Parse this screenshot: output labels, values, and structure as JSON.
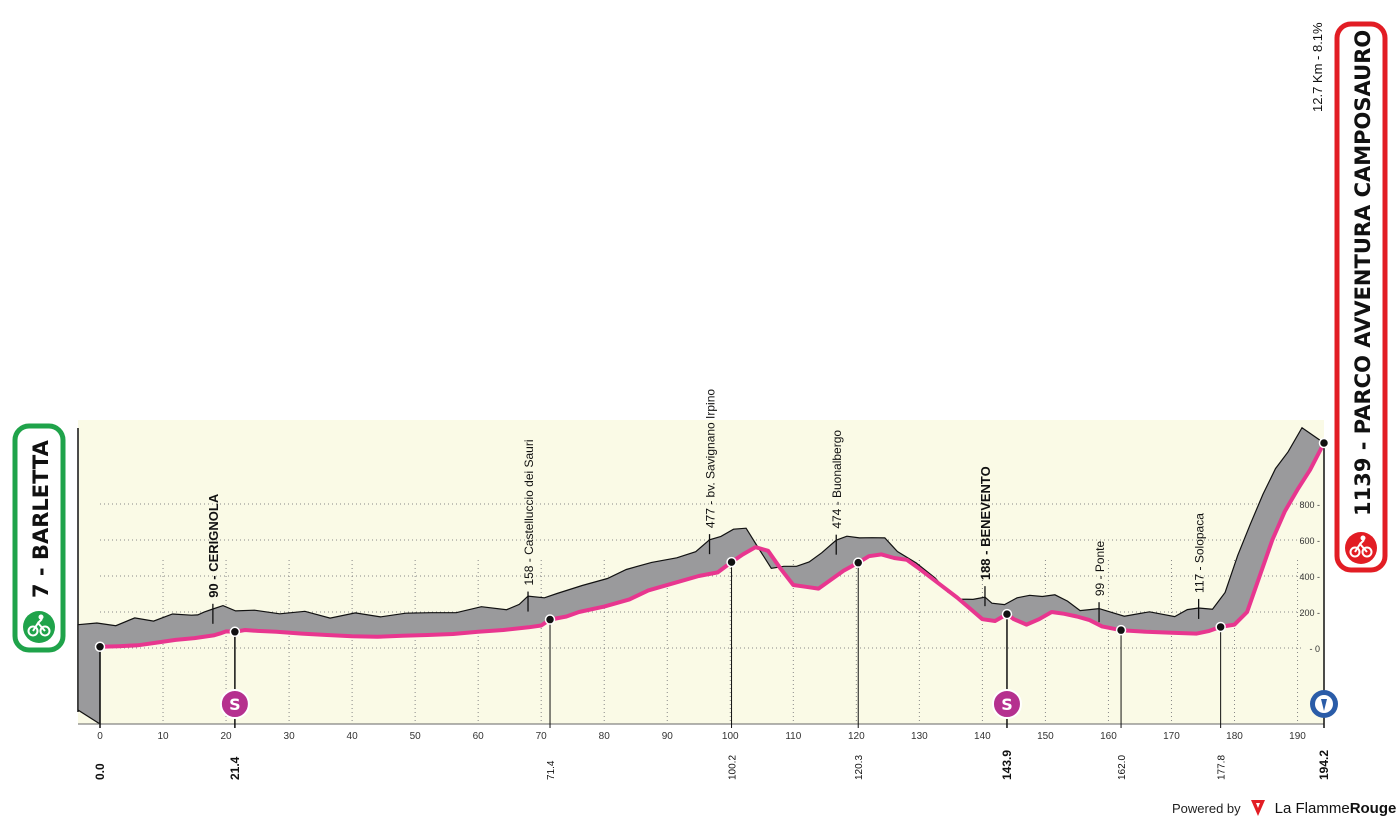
{
  "start": {
    "name": "7 - BARLETTA",
    "altitude": 7,
    "km": "0.0"
  },
  "finish": {
    "name": "1139 - PARCO AVVENTURA CAMPOSAURO",
    "altitude": 1139,
    "km": "194.2",
    "climb": "12.7 Km - 8.1%"
  },
  "footer": {
    "powered": "Powered by",
    "brand_a": "La Flamme",
    "brand_b": "Rouge"
  },
  "colors": {
    "surface": "#9a9a9c",
    "profile": "#e8368f",
    "ground": "#fafae6",
    "start_badge": "#1fa34a",
    "finish_badge": "#e21d24",
    "sprint": "#b5308f",
    "finish_marker": "#2a5ca8"
  },
  "chart_data": {
    "type": "area",
    "title": "",
    "xlabel": "",
    "ylabel": "",
    "xlim": [
      0,
      194.2
    ],
    "ylim": [
      0,
      1200
    ],
    "x_ticks": [
      0,
      10,
      20,
      30,
      40,
      50,
      60,
      70,
      80,
      90,
      100,
      110,
      120,
      130,
      140,
      150,
      160,
      170,
      180,
      190
    ],
    "y_ticks": [
      0,
      200,
      400,
      600,
      800
    ],
    "grid": true,
    "profile": [
      [
        0,
        7
      ],
      [
        3,
        10
      ],
      [
        6,
        15
      ],
      [
        9,
        30
      ],
      [
        12,
        45
      ],
      [
        15,
        55
      ],
      [
        18,
        70
      ],
      [
        19,
        80
      ],
      [
        20,
        92
      ],
      [
        21.4,
        90
      ],
      [
        23,
        100
      ],
      [
        25,
        95
      ],
      [
        28,
        90
      ],
      [
        32,
        80
      ],
      [
        36,
        72
      ],
      [
        40,
        65
      ],
      [
        44,
        62
      ],
      [
        48,
        68
      ],
      [
        52,
        72
      ],
      [
        56,
        78
      ],
      [
        60,
        90
      ],
      [
        64,
        100
      ],
      [
        68,
        115
      ],
      [
        70,
        125
      ],
      [
        71.4,
        158
      ],
      [
        74,
        175
      ],
      [
        76,
        200
      ],
      [
        80,
        230
      ],
      [
        84,
        270
      ],
      [
        87,
        320
      ],
      [
        91,
        360
      ],
      [
        95,
        400
      ],
      [
        98,
        420
      ],
      [
        100.2,
        477
      ],
      [
        102,
        520
      ],
      [
        104,
        560
      ],
      [
        106,
        540
      ],
      [
        108,
        440
      ],
      [
        110,
        350
      ],
      [
        112,
        340
      ],
      [
        114,
        330
      ],
      [
        116,
        380
      ],
      [
        118,
        430
      ],
      [
        120.3,
        474
      ],
      [
        122,
        510
      ],
      [
        124,
        520
      ],
      [
        126,
        500
      ],
      [
        128,
        490
      ],
      [
        130,
        440
      ],
      [
        133,
        360
      ],
      [
        136,
        280
      ],
      [
        138,
        220
      ],
      [
        140,
        160
      ],
      [
        142,
        150
      ],
      [
        143.9,
        188
      ],
      [
        145,
        160
      ],
      [
        147,
        130
      ],
      [
        149,
        160
      ],
      [
        151,
        200
      ],
      [
        153,
        190
      ],
      [
        155,
        175
      ],
      [
        157,
        155
      ],
      [
        159,
        120
      ],
      [
        162,
        99
      ],
      [
        166,
        90
      ],
      [
        170,
        85
      ],
      [
        174,
        80
      ],
      [
        176,
        95
      ],
      [
        177.8,
        117
      ],
      [
        180,
        130
      ],
      [
        182,
        200
      ],
      [
        184,
        400
      ],
      [
        186,
        600
      ],
      [
        188,
        760
      ],
      [
        190,
        880
      ],
      [
        192,
        990
      ],
      [
        194.2,
        1139
      ]
    ],
    "annotations": [
      {
        "km": 0.0,
        "alt": 7,
        "label": "",
        "km_label": "0.0",
        "sprint": false
      },
      {
        "km": 21.4,
        "alt": 90,
        "label": "90 - CERIGNOLA",
        "km_label": "21.4",
        "sprint": true
      },
      {
        "km": 71.4,
        "alt": 158,
        "label": "158 - Castelluccio dei Sauri",
        "km_label": "71.4",
        "sprint": false
      },
      {
        "km": 100.2,
        "alt": 477,
        "label": "477 - bv. Savignano Irpino",
        "km_label": "100.2",
        "sprint": false
      },
      {
        "km": 120.3,
        "alt": 474,
        "label": "474 - Buonalbergo",
        "km_label": "120.3",
        "sprint": false
      },
      {
        "km": 143.9,
        "alt": 188,
        "label": "188 - BENEVENTO",
        "km_label": "143.9",
        "sprint": true
      },
      {
        "km": 162.0,
        "alt": 99,
        "label": "99 - Ponte",
        "km_label": "162.0",
        "sprint": false
      },
      {
        "km": 177.8,
        "alt": 117,
        "label": "117 - Solopaca",
        "km_label": "177.8",
        "sprint": false
      },
      {
        "km": 194.2,
        "alt": 1139,
        "label": "",
        "km_label": "194.2",
        "sprint": false
      }
    ]
  }
}
